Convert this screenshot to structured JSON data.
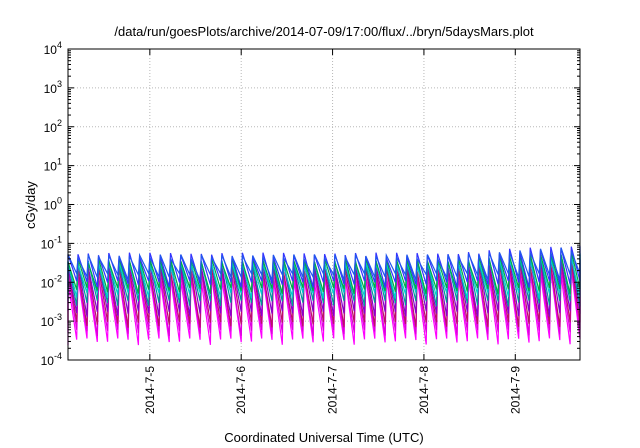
{
  "chart_data": {
    "type": "line",
    "title": "/data/run/goesPlots/archive/2014-07-09/17:00/flux/../bryn/5daysMars.plot",
    "xlabel": "Coordinated Universal Time (UTC)",
    "ylabel": "cGy/day",
    "yscale": "log",
    "ylim": [
      0.0001,
      10000
    ],
    "y_ticks": [
      {
        "base": "10",
        "exp": "-4"
      },
      {
        "base": "10",
        "exp": "-3"
      },
      {
        "base": "10",
        "exp": "-2"
      },
      {
        "base": "10",
        "exp": "-1"
      },
      {
        "base": "10",
        "exp": "0"
      },
      {
        "base": "10",
        "exp": "1"
      },
      {
        "base": "10",
        "exp": "2"
      },
      {
        "base": "10",
        "exp": "3"
      },
      {
        "base": "10",
        "exp": "4"
      }
    ],
    "xlim": [
      "2014-07-04 02:30",
      "2014-07-09 17:00"
    ],
    "x_ticks": [
      "2014-7-5",
      "2014-7-6",
      "2014-7-7",
      "2014-7-8",
      "2014-7-9"
    ],
    "grid": true,
    "sawtooth_period_hours": 2.7,
    "series": [
      {
        "color": "#ff00ff",
        "peak": 0.012,
        "trough": 0.0003
      },
      {
        "color": "#dd00dd",
        "peak": 0.016,
        "trough": 0.0005
      },
      {
        "color": "#bb1166",
        "peak": 0.022,
        "trough": 0.0008
      },
      {
        "color": "#8800cc",
        "peak": 0.028,
        "trough": 0.0015
      },
      {
        "color": "#009999",
        "peak": 0.032,
        "trough": 0.0028
      },
      {
        "color": "#00cccc",
        "peak": 0.03,
        "trough": 0.0045
      },
      {
        "color": "#00aa44",
        "peak": 0.036,
        "trough": 0.006
      },
      {
        "color": "#3333ff",
        "peak": 0.05,
        "trough": 0.009
      },
      {
        "color": "#2255ee",
        "peak": 0.045,
        "trough": 0.014
      }
    ]
  }
}
